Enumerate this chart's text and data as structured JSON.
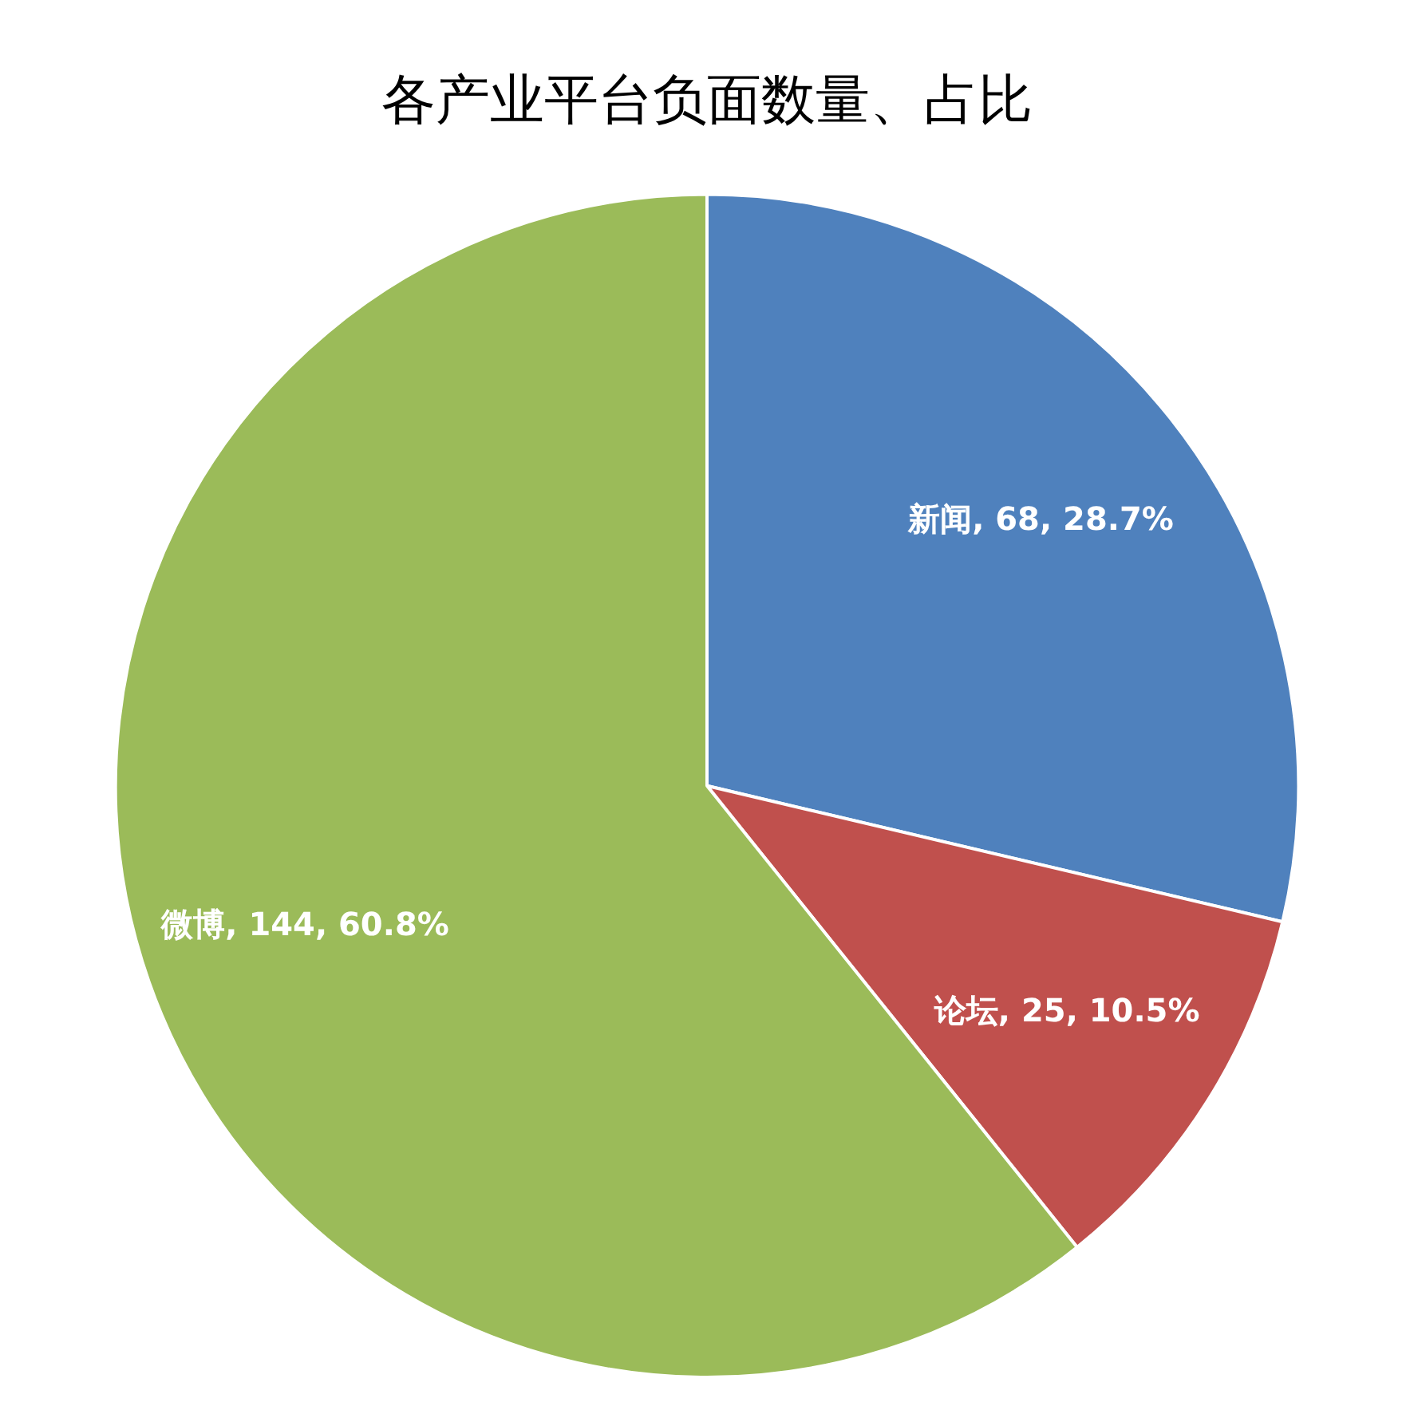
{
  "chart_data": {
    "type": "pie",
    "title": "各产业平台负面数量、占比",
    "categories": [
      "新闻",
      "论坛",
      "微博"
    ],
    "values": [
      68,
      25,
      144
    ],
    "colors": [
      "#4f81bd",
      "#c0504d",
      "#9bbb59"
    ],
    "value_labels": [
      "68, 28.7%",
      "25, 10.5%",
      "144, 60.8%"
    ],
    "legend": false
  }
}
